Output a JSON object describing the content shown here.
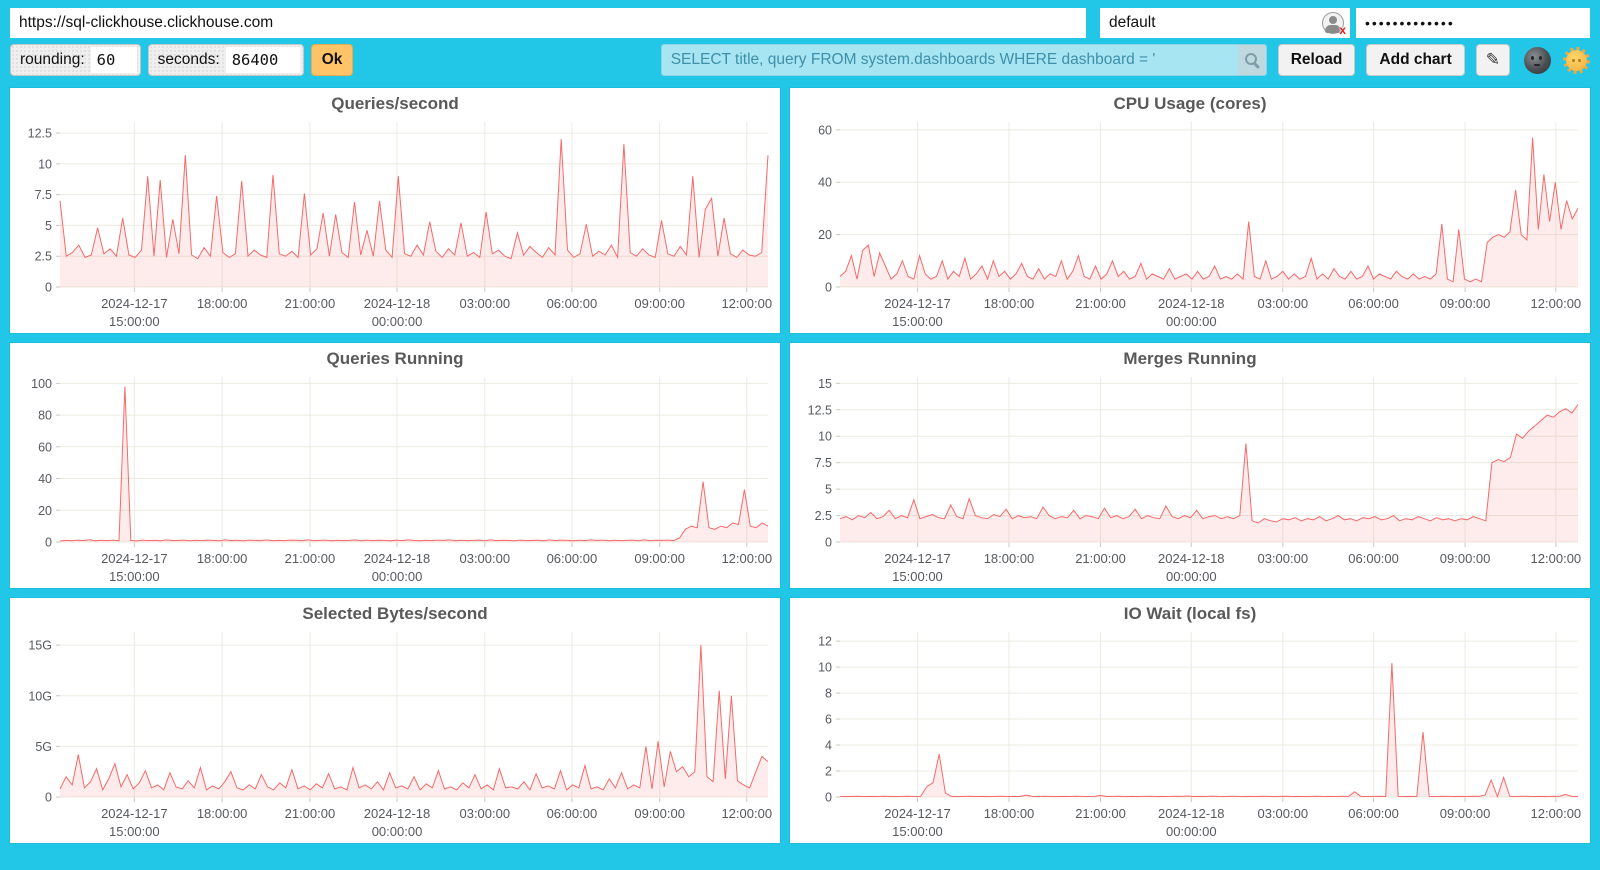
{
  "toolbar": {
    "url": "https://sql-clickhouse.clickhouse.com",
    "user": "default",
    "password_mask": "•••••••••••••",
    "rounding_label": "rounding:",
    "rounding_value": "60",
    "seconds_label": "seconds:",
    "seconds_value": "86400",
    "ok_label": "Ok",
    "query": "SELECT title, query FROM system.dashboards WHERE dashboard = '",
    "reload_label": "Reload",
    "add_chart_label": "Add chart",
    "edit_icon": "✎",
    "icons": [
      "search-icon",
      "user-status-icon",
      "pencil-icon",
      "moon-face-icon",
      "sun-face-icon"
    ]
  },
  "colors": {
    "page_bg": "#22C6E6",
    "panel_bg": "#FFFFFF",
    "line": "#F56A6A",
    "fill": "rgba(245,106,106,0.13)",
    "grid": "#ECEBE0",
    "tick": "#C9C9BF",
    "axis_text": "#56595E",
    "title_text": "#595959",
    "ok_button": "#FFC468",
    "query_bg": "#A8E5F3",
    "query_text": "#3E8FA9"
  },
  "time_axis": {
    "ticks": [
      {
        "f": 0.105,
        "l1": "2024-12-17",
        "l2": "15:00:00"
      },
      {
        "f": 0.229,
        "l1": "18:00:00",
        "l2": ""
      },
      {
        "f": 0.353,
        "l1": "21:00:00",
        "l2": ""
      },
      {
        "f": 0.476,
        "l1": "2024-12-18",
        "l2": "00:00:00"
      },
      {
        "f": 0.6,
        "l1": "03:00:00",
        "l2": ""
      },
      {
        "f": 0.723,
        "l1": "06:00:00",
        "l2": ""
      },
      {
        "f": 0.847,
        "l1": "09:00:00",
        "l2": ""
      },
      {
        "f": 0.97,
        "l1": "12:00:00",
        "l2": ""
      }
    ]
  },
  "chart_data": [
    {
      "type": "area",
      "title": "Queries/second",
      "ymax": 13.4,
      "ylim": [
        0,
        13.4
      ],
      "yticks": [
        {
          "v": 0,
          "l": "0"
        },
        {
          "v": 2.5,
          "l": "2.5"
        },
        {
          "v": 5,
          "l": "5"
        },
        {
          "v": 7.5,
          "l": "7.5"
        },
        {
          "v": 10,
          "l": "10"
        },
        {
          "v": 12.5,
          "l": "12.5"
        }
      ],
      "values": [
        7.0,
        2.5,
        2.8,
        3.4,
        2.4,
        2.6,
        4.8,
        2.7,
        3.1,
        2.5,
        5.6,
        2.6,
        2.4,
        3.0,
        9.0,
        2.5,
        8.7,
        2.4,
        5.5,
        2.7,
        10.7,
        2.6,
        2.3,
        3.2,
        2.5,
        7.4,
        2.8,
        2.4,
        2.7,
        8.6,
        2.5,
        3.0,
        2.6,
        2.4,
        9.1,
        2.7,
        2.5,
        2.9,
        2.4,
        7.6,
        2.6,
        3.1,
        6.0,
        2.5,
        5.9,
        2.8,
        2.4,
        6.9,
        2.6,
        4.6,
        2.5,
        7.0,
        3.0,
        2.4,
        9.0,
        2.7,
        2.5,
        3.4,
        2.6,
        5.3,
        2.9,
        2.4,
        3.1,
        2.6,
        5.2,
        2.5,
        2.8,
        2.4,
        6.1,
        2.7,
        3.0,
        2.5,
        2.3,
        4.4,
        2.6,
        3.3,
        2.8,
        2.4,
        3.2,
        2.6,
        12.0,
        3.0,
        2.4,
        2.7,
        5.1,
        2.5,
        2.9,
        2.6,
        3.4,
        2.4,
        11.6,
        2.8,
        2.5,
        3.1,
        2.6,
        2.4,
        5.4,
        2.7,
        2.5,
        3.3,
        2.6,
        9.0,
        2.4,
        6.3,
        7.2,
        2.5,
        5.6,
        2.7,
        2.4,
        3.0,
        2.6,
        2.5,
        2.8,
        10.7
      ]
    },
    {
      "type": "area",
      "title": "CPU Usage (cores)",
      "ymax": 63,
      "ylim": [
        0,
        63
      ],
      "yticks": [
        {
          "v": 0,
          "l": "0"
        },
        {
          "v": 20,
          "l": "20"
        },
        {
          "v": 40,
          "l": "40"
        },
        {
          "v": 60,
          "l": "60"
        }
      ],
      "values": [
        4,
        6,
        12,
        3,
        14,
        16,
        4,
        13,
        8,
        3,
        5,
        10,
        4,
        3,
        12,
        5,
        3,
        4,
        10,
        3,
        6,
        4,
        11,
        3,
        5,
        8,
        3,
        10,
        4,
        6,
        3,
        5,
        9,
        4,
        3,
        7,
        3,
        5,
        4,
        10,
        3,
        6,
        12,
        4,
        3,
        8,
        3,
        5,
        10,
        4,
        6,
        3,
        4,
        9,
        3,
        5,
        4,
        3,
        7,
        3,
        4,
        5,
        3,
        6,
        3,
        4,
        8,
        3,
        4,
        3,
        5,
        3,
        25,
        4,
        3,
        10,
        3,
        4,
        6,
        3,
        5,
        3,
        4,
        11,
        3,
        5,
        3,
        7,
        4,
        3,
        6,
        3,
        4,
        8,
        3,
        5,
        4,
        3,
        6,
        4,
        3,
        5,
        3,
        4,
        3,
        5,
        24,
        3,
        2,
        22,
        3,
        2,
        3,
        2,
        17,
        19,
        20,
        19,
        21,
        37,
        20,
        18,
        57,
        22,
        43,
        25,
        40,
        22,
        33,
        26,
        30
      ]
    },
    {
      "type": "area",
      "title": "Queries Running",
      "ymax": 104,
      "ylim": [
        0,
        104
      ],
      "yticks": [
        {
          "v": 0,
          "l": "0"
        },
        {
          "v": 20,
          "l": "20"
        },
        {
          "v": 40,
          "l": "40"
        },
        {
          "v": 60,
          "l": "60"
        },
        {
          "v": 80,
          "l": "80"
        },
        {
          "v": 100,
          "l": "100"
        }
      ],
      "values": [
        0.6,
        1.0,
        0.8,
        1.2,
        0.9,
        1.4,
        0.8,
        1.1,
        0.9,
        1.2,
        0.8,
        98,
        1.0,
        0.7,
        1.2,
        0.9,
        1.1,
        0.8,
        1.3,
        0.9,
        1.0,
        1.2,
        0.8,
        1.1,
        0.9,
        1.2,
        1.0,
        0.8,
        1.3,
        0.9,
        1.1,
        0.8,
        1.2,
        1.0,
        0.9,
        1.3,
        0.8,
        1.0,
        0.9,
        1.2,
        1.1,
        0.8,
        1.3,
        0.9,
        1.0,
        1.2,
        0.8,
        1.1,
        0.9,
        1.0,
        1.3,
        0.8,
        1.2,
        0.9,
        1.1,
        1.0,
        0.8,
        1.2,
        0.9,
        1.3,
        1.0,
        0.8,
        1.1,
        0.9,
        1.2,
        1.0,
        1.3,
        0.8,
        1.1,
        0.9,
        1.0,
        1.2,
        0.8,
        1.3,
        0.9,
        1.1,
        1.0,
        0.8,
        1.2,
        0.9,
        1.0,
        1.1,
        0.8,
        1.3,
        0.9,
        1.2,
        1.0,
        0.8,
        1.1,
        0.9,
        1.3,
        1.0,
        1.2,
        0.8,
        1.1,
        0.9,
        1.0,
        1.2,
        0.8,
        1.3,
        0.9,
        1.1,
        1.0,
        1.2,
        0.9,
        2.5,
        8,
        10,
        9,
        38,
        9,
        8,
        10,
        9,
        12,
        11,
        33,
        10,
        9,
        12,
        10
      ]
    },
    {
      "type": "area",
      "title": "Merges Running",
      "ymax": 15.6,
      "ylim": [
        0,
        15.6
      ],
      "yticks": [
        {
          "v": 0,
          "l": "0"
        },
        {
          "v": 2.5,
          "l": "2.5"
        },
        {
          "v": 5,
          "l": "5"
        },
        {
          "v": 7.5,
          "l": "7.5"
        },
        {
          "v": 10,
          "l": "10"
        },
        {
          "v": 12.5,
          "l": "12.5"
        },
        {
          "v": 15,
          "l": "15"
        }
      ],
      "values": [
        2.2,
        2.4,
        2.1,
        2.5,
        2.3,
        2.8,
        2.2,
        2.4,
        3.0,
        2.2,
        2.5,
        2.3,
        4.0,
        2.2,
        2.4,
        2.6,
        2.3,
        2.2,
        3.5,
        2.4,
        2.2,
        4.1,
        2.5,
        2.3,
        2.2,
        2.6,
        2.4,
        3.1,
        2.2,
        2.5,
        2.3,
        2.4,
        2.2,
        3.3,
        2.5,
        2.2,
        2.4,
        2.3,
        3.0,
        2.2,
        2.5,
        2.4,
        2.2,
        3.2,
        2.3,
        2.5,
        2.2,
        2.4,
        3.1,
        2.2,
        2.5,
        2.3,
        2.2,
        3.4,
        2.4,
        2.2,
        2.5,
        2.3,
        3.0,
        2.2,
        2.4,
        2.5,
        2.2,
        2.4,
        2.2,
        2.5,
        9.3,
        2.0,
        1.8,
        2.2,
        2.0,
        1.9,
        2.2,
        2.1,
        2.3,
        2.0,
        2.2,
        2.1,
        2.4,
        2.0,
        2.2,
        2.5,
        2.1,
        2.2,
        2.0,
        2.3,
        2.2,
        2.4,
        2.1,
        2.2,
        2.5,
        2.0,
        2.2,
        2.1,
        2.4,
        2.2,
        2.0,
        2.3,
        2.1,
        2.2,
        2.0,
        2.2,
        2.1,
        2.4,
        2.2,
        2.0,
        7.5,
        7.8,
        7.6,
        8.0,
        10.2,
        9.8,
        10.5,
        11.0,
        11.5,
        12.0,
        11.8,
        12.3,
        12.6,
        12.2,
        13.0
      ]
    },
    {
      "type": "area",
      "title": "Selected Bytes/second",
      "ymax": 16.3,
      "ylim": [
        0,
        16.3
      ],
      "unit": "G",
      "yticks": [
        {
          "v": 0,
          "l": "0"
        },
        {
          "v": 5,
          "l": "5G"
        },
        {
          "v": 10,
          "l": "10G"
        },
        {
          "v": 15,
          "l": "15G"
        }
      ],
      "values": [
        0.8,
        2.0,
        1.2,
        4.2,
        0.9,
        1.5,
        2.8,
        0.7,
        1.8,
        3.3,
        1.0,
        2.2,
        0.8,
        1.4,
        2.6,
        0.9,
        1.2,
        0.7,
        2.4,
        1.0,
        0.8,
        1.6,
        0.9,
        2.9,
        0.7,
        1.1,
        0.8,
        1.5,
        2.5,
        0.9,
        0.7,
        1.2,
        0.8,
        2.2,
        1.0,
        0.7,
        1.4,
        0.9,
        2.7,
        0.8,
        1.1,
        0.7,
        1.3,
        0.9,
        2.3,
        0.8,
        1.0,
        0.7,
        2.9,
        0.9,
        1.2,
        0.8,
        1.5,
        0.7,
        2.4,
        0.9,
        1.1,
        0.8,
        2.0,
        0.7,
        1.3,
        0.9,
        2.6,
        0.8,
        1.0,
        0.7,
        1.4,
        0.9,
        2.2,
        0.8,
        1.2,
        0.7,
        2.8,
        0.9,
        1.0,
        0.8,
        1.5,
        0.7,
        2.3,
        0.9,
        1.1,
        0.8,
        2.6,
        0.7,
        1.2,
        0.9,
        3.1,
        0.8,
        1.0,
        0.7,
        1.8,
        0.9,
        2.4,
        0.8,
        1.2,
        0.9,
        5.0,
        0.8,
        5.5,
        1.0,
        4.5,
        2.5,
        3.0,
        2.0,
        2.5,
        15.0,
        2.0,
        1.5,
        10.5,
        1.8,
        10.0,
        1.6,
        1.2,
        0.9,
        2.5,
        4.0,
        3.5
      ]
    },
    {
      "type": "area",
      "title": "IO Wait (local fs)",
      "ymax": 12.7,
      "ylim": [
        0,
        12.7
      ],
      "yticks": [
        {
          "v": 0,
          "l": "0"
        },
        {
          "v": 2,
          "l": "2"
        },
        {
          "v": 4,
          "l": "4"
        },
        {
          "v": 6,
          "l": "6"
        },
        {
          "v": 8,
          "l": "8"
        },
        {
          "v": 10,
          "l": "10"
        },
        {
          "v": 12,
          "l": "12"
        }
      ],
      "values": [
        0.05,
        0.04,
        0.05,
        0.06,
        0.04,
        0.05,
        0.04,
        0.06,
        0.05,
        0.04,
        0.05,
        0.06,
        0.04,
        0.05,
        0.8,
        1.1,
        3.3,
        0.3,
        0.05,
        0.04,
        0.05,
        0.06,
        0.04,
        0.05,
        0.04,
        0.05,
        0.06,
        0.04,
        0.05,
        0.04,
        0.15,
        0.05,
        0.04,
        0.06,
        0.05,
        0.04,
        0.05,
        0.04,
        0.06,
        0.05,
        0.04,
        0.05,
        0.12,
        0.04,
        0.05,
        0.06,
        0.04,
        0.05,
        0.04,
        0.05,
        0.06,
        0.04,
        0.05,
        0.04,
        0.06,
        0.05,
        0.08,
        0.04,
        0.05,
        0.04,
        0.07,
        0.05,
        0.04,
        0.06,
        0.05,
        0.04,
        0.05,
        0.04,
        0.06,
        0.05,
        0.04,
        0.05,
        0.06,
        0.04,
        0.05,
        0.04,
        0.05,
        0.06,
        0.04,
        0.05,
        0.04,
        0.06,
        0.05,
        0.4,
        0.05,
        0.04,
        0.05,
        0.06,
        0.04,
        10.3,
        0.05,
        0.04,
        0.05,
        0.04,
        5.0,
        0.05,
        0.04,
        0.06,
        0.05,
        0.04,
        0.05,
        0.04,
        0.06,
        0.05,
        0.15,
        1.3,
        0.04,
        1.5,
        0.05,
        0.04,
        0.06,
        0.05,
        0.04,
        0.05,
        0.04,
        0.06,
        0.05,
        0.2,
        0.05,
        0.04
      ]
    }
  ]
}
